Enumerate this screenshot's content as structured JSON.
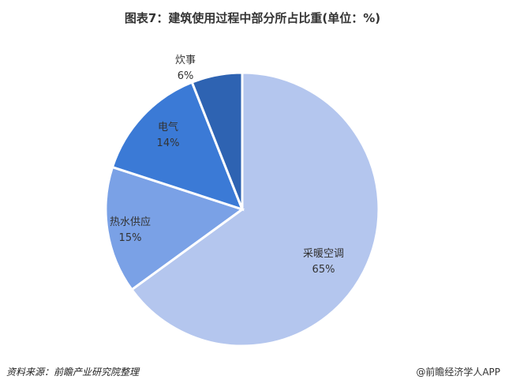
{
  "chart_data": {
    "type": "pie",
    "title": "图表7：建筑使用过程中部分所占比重(单位：%)",
    "start": "12 o'clock, clockwise",
    "slices": [
      {
        "label": "采暖空调",
        "value": 65,
        "display": "65%",
        "color": "#b4c6ee"
      },
      {
        "label": "热水供应",
        "value": 15,
        "display": "15%",
        "color": "#7aa1e6"
      },
      {
        "label": "电气",
        "value": 14,
        "display": "14%",
        "color": "#3b7ad6"
      },
      {
        "label": "炊事",
        "value": 6,
        "display": "6%",
        "color": "#2e63b2"
      }
    ]
  },
  "footer": {
    "source": "资料来源：前瞻产业研究院整理",
    "brand": "@前瞻经济学人APP"
  }
}
